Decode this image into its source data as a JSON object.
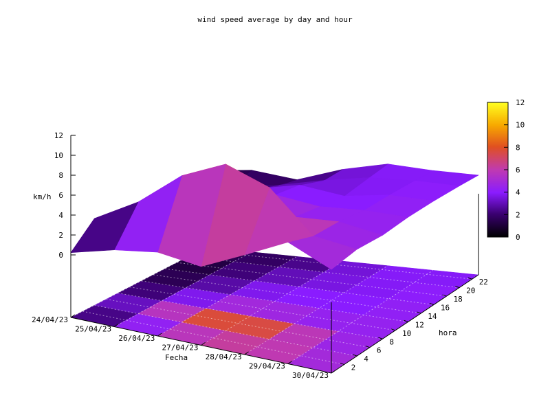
{
  "chart_data": {
    "type": "surface3d",
    "title": "wind speed average by day and hour",
    "xlabel": "Fecha",
    "ylabel": "hora",
    "zlabel": "km/h",
    "x_ticks": [
      "24/04/23",
      "25/04/23",
      "26/04/23",
      "27/04/23",
      "28/04/23",
      "29/04/23",
      "30/04/23"
    ],
    "y_ticks": [
      "2",
      "4",
      "6",
      "8",
      "10",
      "12",
      "14",
      "16",
      "18",
      "20",
      "22"
    ],
    "z_ticks": [
      "0",
      "2",
      "4",
      "6",
      "8",
      "10",
      "12"
    ],
    "zlim": [
      0,
      12
    ],
    "colorbar": {
      "range": [
        0,
        12
      ],
      "ticks": [
        "0",
        "2",
        "4",
        "6",
        "8",
        "10",
        "12"
      ],
      "palette": [
        "#000000",
        "#3a0070",
        "#8a1cff",
        "#c03ab0",
        "#e05020",
        "#f7a800",
        "#ffff20"
      ]
    },
    "grid": true,
    "days": [
      0,
      1,
      2,
      3,
      4,
      5,
      6
    ],
    "hours": [
      0,
      4,
      8,
      12,
      16,
      20,
      23
    ],
    "z": [
      [
        0.3,
        1.5,
        2.2,
        1.7,
        3.8,
        6.0,
        4.2
      ],
      [
        2.5,
        5.0,
        8.5,
        10.5,
        9.0,
        5.0,
        4.5
      ],
      [
        1.5,
        3.5,
        5.5,
        6.0,
        4.5,
        4.8,
        4.2
      ],
      [
        1.0,
        2.5,
        3.5,
        4.5,
        4.0,
        4.3,
        4.3
      ],
      [
        0.5,
        2.0,
        3.0,
        4.0,
        3.5,
        4.2,
        4.2
      ],
      [
        0.8,
        1.5,
        2.0,
        3.0,
        3.8,
        4.0,
        4.0
      ],
      [
        1.5,
        2.0,
        1.5,
        3.0,
        4.0,
        3.8,
        3.8
      ]
    ]
  }
}
